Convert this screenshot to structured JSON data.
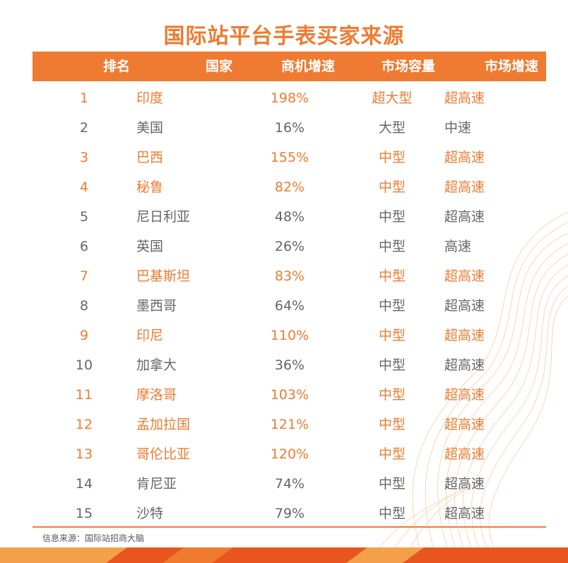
{
  "title": "国际站平台手表买家来源",
  "headers": {
    "rank": "排名",
    "country": "国家",
    "growth": "商机增速",
    "market_size": "市场容量",
    "market_speed": "市场增速"
  },
  "rows": [
    {
      "rank": "1",
      "country": "印度",
      "growth": "198%",
      "size": "超大型",
      "speed": "超高速",
      "highlight": true
    },
    {
      "rank": "2",
      "country": "美国",
      "growth": "16%",
      "size": "大型",
      "speed": "中速",
      "highlight": false
    },
    {
      "rank": "3",
      "country": "巴西",
      "growth": "155%",
      "size": "中型",
      "speed": "超高速",
      "highlight": true
    },
    {
      "rank": "4",
      "country": "秘鲁",
      "growth": "82%",
      "size": "中型",
      "speed": "超高速",
      "highlight": true
    },
    {
      "rank": "5",
      "country": "尼日利亚",
      "growth": "48%",
      "size": "中型",
      "speed": "超高速",
      "highlight": false
    },
    {
      "rank": "6",
      "country": "英国",
      "growth": "26%",
      "size": "中型",
      "speed": "高速",
      "highlight": false
    },
    {
      "rank": "7",
      "country": "巴基斯坦",
      "growth": "83%",
      "size": "中型",
      "speed": "超高速",
      "highlight": true
    },
    {
      "rank": "8",
      "country": "墨西哥",
      "growth": "64%",
      "size": "中型",
      "speed": "超高速",
      "highlight": false
    },
    {
      "rank": "9",
      "country": "印尼",
      "growth": "110%",
      "size": "中型",
      "speed": "超高速",
      "highlight": true
    },
    {
      "rank": "10",
      "country": "加拿大",
      "growth": "36%",
      "size": "中型",
      "speed": "超高速",
      "highlight": false
    },
    {
      "rank": "11",
      "country": "摩洛哥",
      "growth": "103%",
      "size": "中型",
      "speed": "超高速",
      "highlight": true
    },
    {
      "rank": "12",
      "country": "孟加拉国",
      "growth": "121%",
      "size": "中型",
      "speed": "超高速",
      "highlight": true
    },
    {
      "rank": "13",
      "country": "哥伦比亚",
      "growth": "120%",
      "size": "中型",
      "speed": "超高速",
      "highlight": true
    },
    {
      "rank": "14",
      "country": "肯尼亚",
      "growth": "74%",
      "size": "中型",
      "speed": "超高速",
      "highlight": false
    },
    {
      "rank": "15",
      "country": "沙特",
      "growth": "79%",
      "size": "中型",
      "speed": "超高速",
      "highlight": false
    }
  ],
  "source": "信息来源：国际站招商大脑",
  "colors": {
    "accent": "#EE7B31",
    "text_gray": "#666666",
    "footer_dark": "#E8551E",
    "footer_light": "#F4A04A"
  }
}
